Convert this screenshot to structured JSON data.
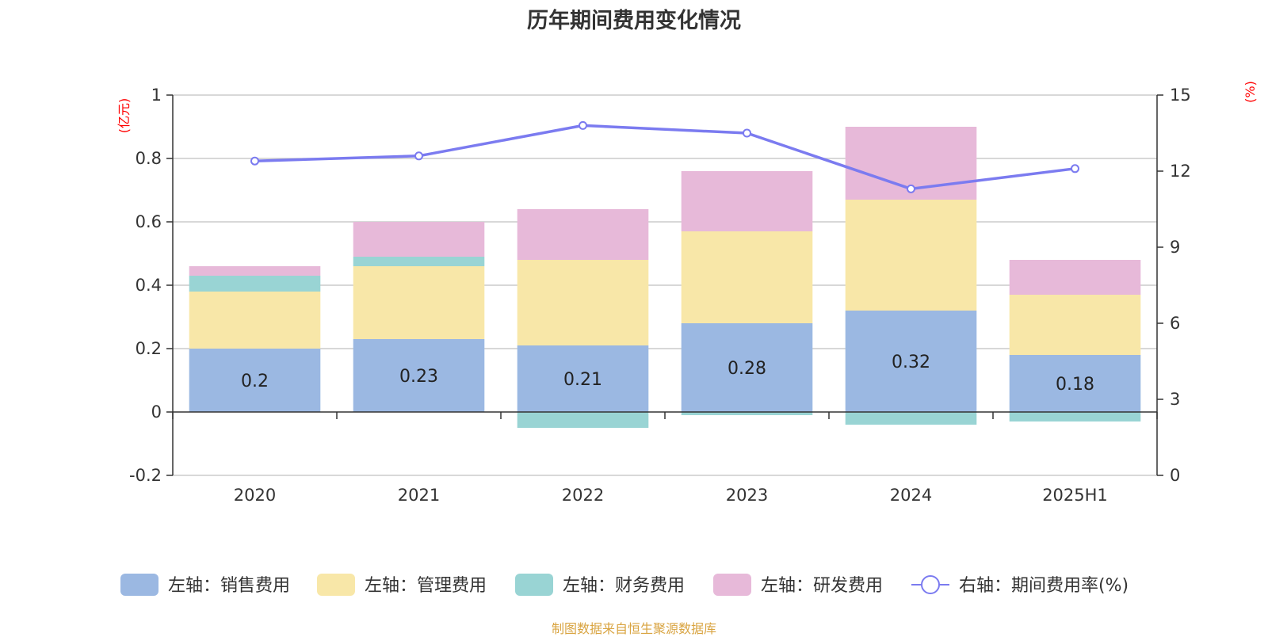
{
  "title": "历年期间费用变化情况",
  "source": "制图数据来自恒生聚源数据库",
  "colors": {
    "sales": "#9bb8e2",
    "admin": "#f8e7a8",
    "finance": "#99d4d4",
    "rd": "#e7b9d9",
    "rate_line": "#7b7bf0",
    "grid": "#cccccc",
    "axis": "#333333",
    "unit": "#ff0000"
  },
  "chart_data": {
    "type": "bar",
    "stacked": true,
    "categories": [
      "2020",
      "2021",
      "2022",
      "2023",
      "2024",
      "2025H1"
    ],
    "left_axis": {
      "unit": "(亿元)",
      "ylim": [
        -0.2,
        1
      ],
      "ticks": [
        "-0.2",
        "0",
        "0.2",
        "0.4",
        "0.6",
        "0.8",
        "1"
      ]
    },
    "right_axis": {
      "unit": "(%)",
      "ylim": [
        0,
        15
      ],
      "ticks": [
        "0",
        "3",
        "6",
        "9",
        "12",
        "15"
      ]
    },
    "series": [
      {
        "name": "左轴：销售费用",
        "key": "sales",
        "axis": "left",
        "type": "bar",
        "values": [
          0.2,
          0.23,
          0.21,
          0.28,
          0.32,
          0.18
        ],
        "labels": [
          "0.2",
          "0.23",
          "0.21",
          "0.28",
          "0.32",
          "0.18"
        ]
      },
      {
        "name": "左轴：管理费用",
        "key": "admin",
        "axis": "left",
        "type": "bar",
        "values": [
          0.18,
          0.23,
          0.27,
          0.29,
          0.35,
          0.19
        ]
      },
      {
        "name": "左轴：财务费用",
        "key": "finance",
        "axis": "left",
        "type": "bar",
        "values": [
          0.05,
          0.03,
          -0.05,
          -0.01,
          -0.04,
          -0.03
        ]
      },
      {
        "name": "左轴：研发费用",
        "key": "rd",
        "axis": "left",
        "type": "bar",
        "values": [
          0.03,
          0.11,
          0.16,
          0.19,
          0.23,
          0.11
        ]
      },
      {
        "name": "右轴：期间费用率(%)",
        "key": "rate_line",
        "axis": "right",
        "type": "line",
        "values": [
          12.4,
          12.6,
          13.8,
          13.5,
          11.3,
          12.1
        ]
      }
    ],
    "grid": true,
    "legend": "bottom"
  }
}
